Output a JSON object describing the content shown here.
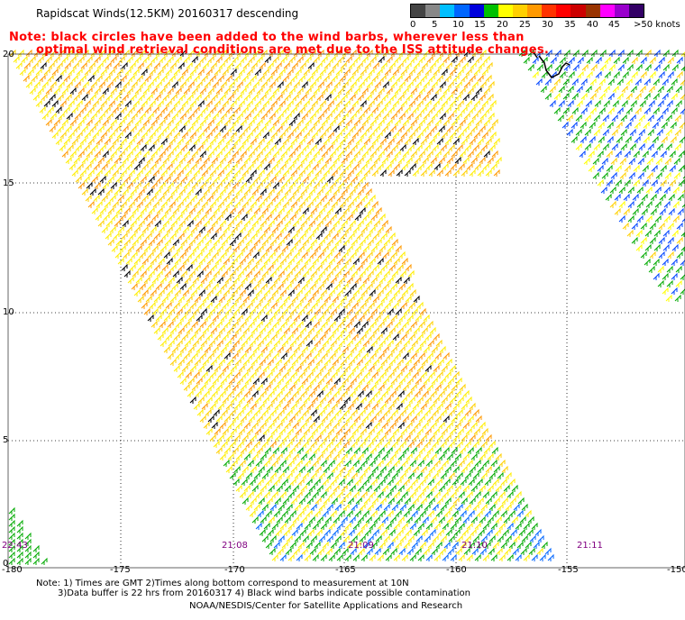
{
  "title": "Rapidscat Winds(12.5KM) 20160317 descending",
  "note": {
    "line1": "Note: black circles have been added to the wind barbs, wherever less than",
    "line2": "optimal wind retrieval conditions are met due to the ISS attitude changes."
  },
  "legend": {
    "labels": [
      "0",
      "5",
      "10",
      "15",
      "20",
      "25",
      "30",
      "35",
      "40",
      "45",
      ">50 knots"
    ],
    "colors": [
      "#444444",
      "#888888",
      "#00bfff",
      "#0066ff",
      "#0000dd",
      "#00c000",
      "#ffff00",
      "#ffd000",
      "#ff9900",
      "#ff3300",
      "#ff0000",
      "#cc0000",
      "#993300",
      "#ff00ff",
      "#9900cc",
      "#330066"
    ]
  },
  "axes": {
    "x_ticks": [
      "-180",
      "-175",
      "-170",
      "-165",
      "-160",
      "-155",
      "-150"
    ],
    "y_ticks": [
      "20",
      "15",
      "10",
      "5",
      "0"
    ]
  },
  "times": [
    "22:43",
    "21:08",
    "21:09",
    "21:10",
    "21:11"
  ],
  "footer": {
    "line1": "Note: 1) Times are GMT 2)Times along bottom correspond to measurement at 10N",
    "line2": "3)Data buffer is 22 hrs from 20160317 4) Black wind barbs indicate possible contamination",
    "line3": "NOAA/NESDIS/Center for Satellite Applications and Research"
  },
  "colors": {
    "note_text": "#ff0000",
    "time_text": "#800080",
    "grid": "#000000"
  }
}
